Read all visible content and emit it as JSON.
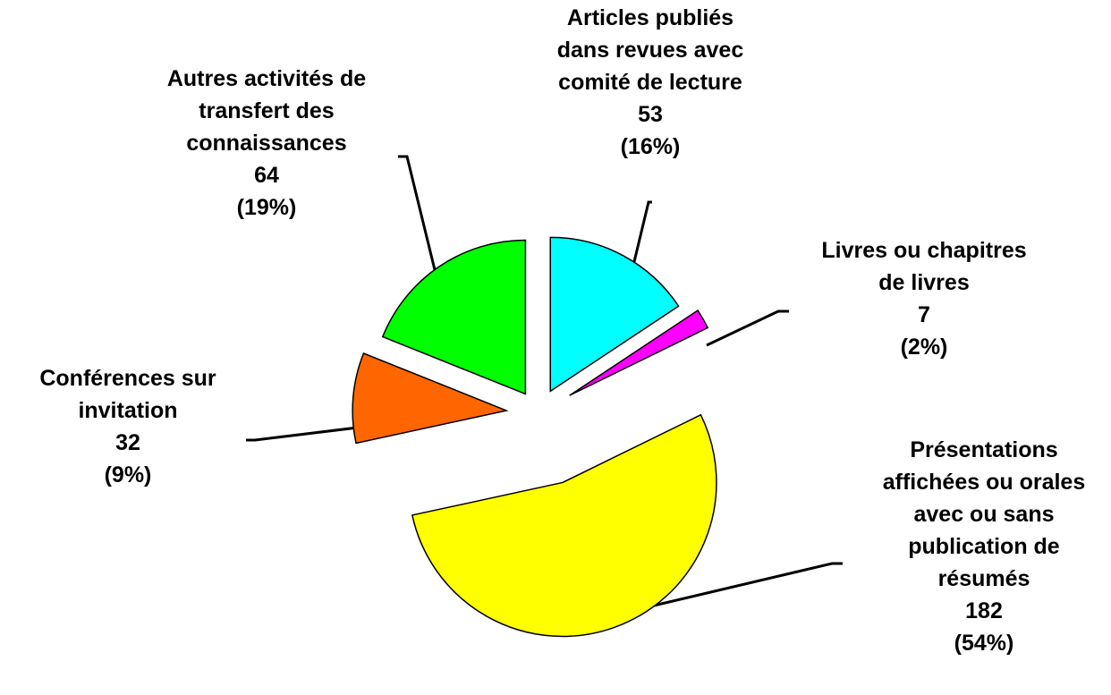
{
  "chart_data": {
    "type": "pie",
    "categories": [
      "Articles publiés\ndans revues avec\ncomité de lecture",
      "Livres ou chapitres\nde livres",
      "Présentations\naffichées ou orales\navec ou sans\npublication de\nrésumés",
      "Conférences sur\ninvitation",
      "Autres activités de\ntransfert des\nconnaissances"
    ],
    "values": [
      53,
      7,
      182,
      32,
      64
    ],
    "percent_labels": [
      "(16%)",
      "(2%)",
      "(54%)",
      "(9%)",
      "(19%)"
    ],
    "colors": [
      "#00ffff",
      "#ff00ff",
      "#ffff00",
      "#ff6600",
      "#00ff00"
    ]
  }
}
